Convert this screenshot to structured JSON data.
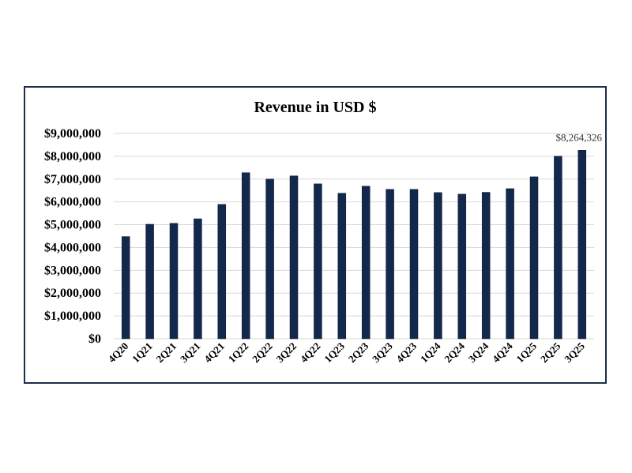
{
  "colors": {
    "bar": "#13294b",
    "border": "#1b2f4a"
  },
  "chart_data": {
    "type": "bar",
    "title": "Revenue in USD $",
    "categories": [
      "4Q20",
      "1Q21",
      "2Q21",
      "3Q21",
      "4Q21",
      "1Q22",
      "2Q22",
      "3Q22",
      "4Q22",
      "1Q23",
      "2Q23",
      "3Q23",
      "4Q23",
      "1Q24",
      "2Q24",
      "3Q24",
      "4Q24",
      "1Q25",
      "2Q25",
      "3Q25"
    ],
    "values": [
      4480000,
      5020000,
      5060000,
      5260000,
      5890000,
      7280000,
      7000000,
      7140000,
      6790000,
      6380000,
      6690000,
      6550000,
      6550000,
      6410000,
      6340000,
      6420000,
      6580000,
      7100000,
      8000000,
      8264326
    ],
    "ylim": [
      0,
      9000000
    ],
    "yticks": [
      0,
      1000000,
      2000000,
      3000000,
      4000000,
      5000000,
      6000000,
      7000000,
      8000000,
      9000000
    ],
    "ytick_labels": [
      "$0",
      "$1,000,000",
      "$2,000,000",
      "$3,000,000",
      "$4,000,000",
      "$5,000,000",
      "$6,000,000",
      "$7,000,000",
      "$8,000,000",
      "$9,000,000"
    ],
    "data_labels": [
      {
        "index": 19,
        "text": "$8,264,326"
      }
    ],
    "xlabel": "",
    "ylabel": "",
    "grid": true
  }
}
